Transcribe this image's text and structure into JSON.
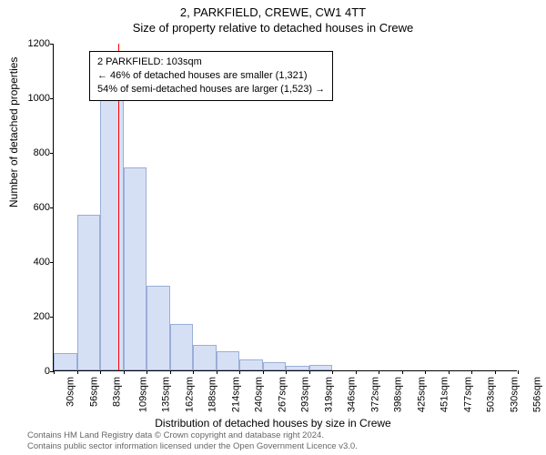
{
  "title": {
    "main": "2, PARKFIELD, CREWE, CW1 4TT",
    "sub": "Size of property relative to detached houses in Crewe"
  },
  "chart": {
    "type": "histogram",
    "ylabel": "Number of detached properties",
    "xlabel": "Distribution of detached houses by size in Crewe",
    "ylim": [
      0,
      1200
    ],
    "ytick_step": 200,
    "yticks": [
      0,
      200,
      400,
      600,
      800,
      1000,
      1200
    ],
    "xticks": [
      "30sqm",
      "56sqm",
      "83sqm",
      "109sqm",
      "135sqm",
      "162sqm",
      "188sqm",
      "214sqm",
      "240sqm",
      "267sqm",
      "293sqm",
      "319sqm",
      "346sqm",
      "372sqm",
      "398sqm",
      "425sqm",
      "451sqm",
      "477sqm",
      "503sqm",
      "530sqm",
      "556sqm"
    ],
    "bars": [
      65,
      570,
      1065,
      745,
      310,
      170,
      95,
      70,
      40,
      30,
      18,
      20,
      0,
      0,
      0,
      0,
      0,
      0,
      0,
      0
    ],
    "bar_fill": "#d6e0f5",
    "bar_stroke": "#9aaed6",
    "background_color": "#ffffff",
    "axis_color": "#000000",
    "marker": {
      "position_bin": 2.77,
      "color": "#ff0000"
    },
    "info_box": {
      "line1": "2 PARKFIELD: 103sqm",
      "line2": "← 46% of detached houses are smaller (1,321)",
      "line3": "54% of semi-detached houses are larger (1,523) →"
    }
  },
  "footer": {
    "line1": "Contains HM Land Registry data © Crown copyright and database right 2024.",
    "line2": "Contains public sector information licensed under the Open Government Licence v3.0."
  }
}
